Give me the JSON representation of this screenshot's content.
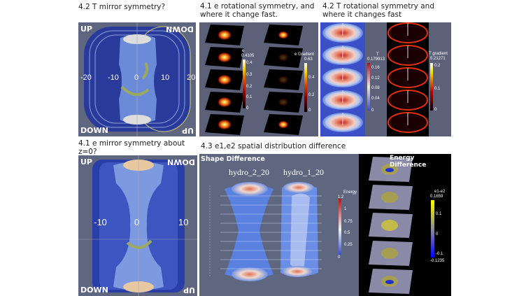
{
  "titles": {
    "t_mirror": "4.2 T mirror symmetry?",
    "e_mirror": "4.1 e mirror symmetry about z=0?",
    "e_rot": "4.1 e rotational symmetry, and where it change fast.",
    "t_rot": "4.2 T rotational symmetry and where it changes fast",
    "e_diff": "4.3 e1,e2 spatial distribution difference"
  },
  "t_mirror_panel": {
    "up": "UP",
    "down": "DOWN",
    "down_flipped": "DOWN",
    "up_flipped": "UP",
    "ticks": [
      "-20",
      "-10",
      "0",
      "10",
      "20"
    ]
  },
  "e_mirror_panel": {
    "up": "UP",
    "down": "DOWN",
    "down_flipped": "DOWN",
    "up_flipped": "UP",
    "ticks": [
      "-10",
      "0",
      "10"
    ]
  },
  "e_rot_panel": {
    "e_legend": {
      "title": "e",
      "max": "0.4105",
      "ticks": [
        "0.4",
        "0.3",
        "0.2",
        "0.1",
        "0"
      ]
    },
    "grad_legend": {
      "title": "e Gradient",
      "max": "0.63",
      "ticks": [
        "0.6",
        "0.4",
        "0.2",
        "0"
      ]
    }
  },
  "t_rot_panel": {
    "t_legend": {
      "title": "T",
      "max": "0.179913",
      "ticks": [
        "0.16",
        "0.12",
        "0.08",
        "0.04",
        "0"
      ]
    },
    "grad_legend": {
      "title": "T gradient",
      "max": "0.21271",
      "ticks": [
        "0.2",
        "0.1",
        "0"
      ]
    }
  },
  "e_diff_panel": {
    "shape_title": "Shape Difference",
    "series_a": "hydro_2_20",
    "series_b": "hydro_1_20",
    "energy_legend": {
      "title": "Energy",
      "ticks": [
        "1.2",
        "1",
        "0.75",
        "0.5",
        "0.25",
        "0"
      ]
    },
    "energy_title": "Energy Difference",
    "diff_legend": {
      "title": "e1-e2",
      "max": "0.1659",
      "ticks": [
        "0.1",
        "0",
        "-0.1"
      ],
      "min": "-0.1235"
    }
  }
}
